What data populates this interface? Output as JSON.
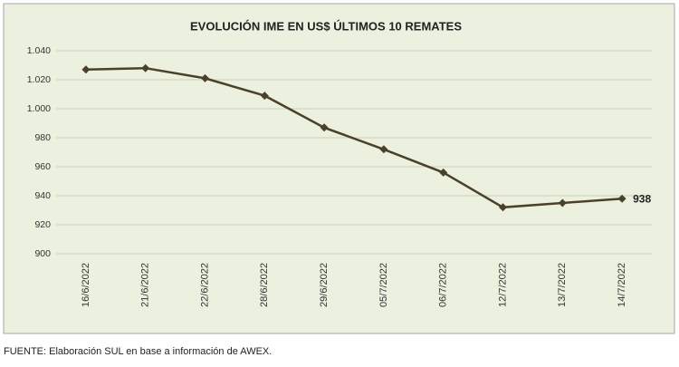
{
  "chart_data": {
    "type": "line",
    "title": "EVOLUCIÓN IME EN US$ ÚLTIMOS 10 REMATES",
    "categories": [
      "16/6/2022",
      "21/6/2022",
      "22/6/2022",
      "28/6/2022",
      "29/6/2022",
      "05/7/2022",
      "06/7/2022",
      "12/7/2022",
      "13/7/2022",
      "14/7/2022"
    ],
    "values": [
      1027,
      1028,
      1021,
      1009,
      987,
      972,
      956,
      932,
      935,
      938
    ],
    "value_labels": [
      null,
      null,
      null,
      null,
      null,
      null,
      null,
      null,
      null,
      "938"
    ],
    "color": "#4b4128",
    "ylim": [
      900,
      1040
    ],
    "yticks": [
      900,
      920,
      940,
      960,
      980,
      {
        "value": 1000,
        "label": "1.000"
      },
      {
        "value": 1020,
        "label": "1.020"
      },
      {
        "value": 1040,
        "label": "1.040"
      }
    ],
    "grid": true,
    "source": "FUENTE: Elaboración SUL en base a información de AWEX."
  }
}
